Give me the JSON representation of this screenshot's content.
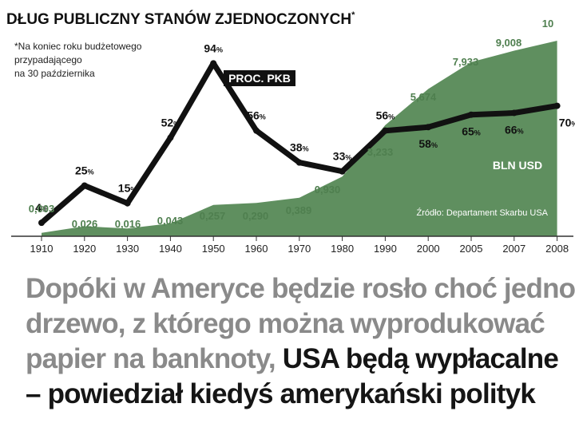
{
  "chart_data": {
    "type": "line",
    "title": "DŁUG PUBLICZNY STANÓW ZJEDNOCZONYCH",
    "title_marker": "*",
    "footnote": [
      "*Na koniec roku budżetowego",
      "przypadającego",
      "na 30 października"
    ],
    "source": "Źródło: Departament Skarbu USA",
    "categories": [
      "1910",
      "1920",
      "1930",
      "1940",
      "1950",
      "1960",
      "1970",
      "1980",
      "1990",
      "2000",
      "2005",
      "2007",
      "2008"
    ],
    "series": [
      {
        "name": "PROC. PKB",
        "kind": "line",
        "color": "#111111",
        "values": [
          4,
          25,
          15,
          52,
          94,
          56,
          38,
          33,
          56,
          58,
          65,
          66,
          70
        ],
        "labels": [
          "4",
          "25",
          "15",
          "52",
          "94",
          "56",
          "38",
          "33",
          "56",
          "58",
          "65",
          "66",
          "70"
        ],
        "unit": "%"
      },
      {
        "name": "BLN USD",
        "kind": "area",
        "color": "#5f8f5f",
        "values": [
          0.003,
          0.026,
          0.016,
          0.043,
          0.257,
          0.29,
          0.389,
          0.93,
          3.233,
          5.674,
          7.933,
          9.008,
          10
        ],
        "labels": [
          "0,003",
          "0,026",
          "0,016",
          "0,043",
          "0,257",
          "0,290",
          "0,389",
          "0,930",
          "3,233",
          "5,674",
          "7,933",
          "9,008",
          "10"
        ]
      }
    ],
    "grid": false
  },
  "quote": {
    "gray": "Dopóki w Ameryce będzie rosło choć jedno drzewo, z którego można wyprodukować papier na banknoty,",
    "dark": " USA będą wypłacalne – powiedział kiedyś amerykański polityk"
  },
  "colors": {
    "line": "#111111",
    "area": "#5f8f5f",
    "area_label": "#4f7f4f",
    "quote_gray": "#8a8a8a",
    "quote_dark": "#151515"
  }
}
